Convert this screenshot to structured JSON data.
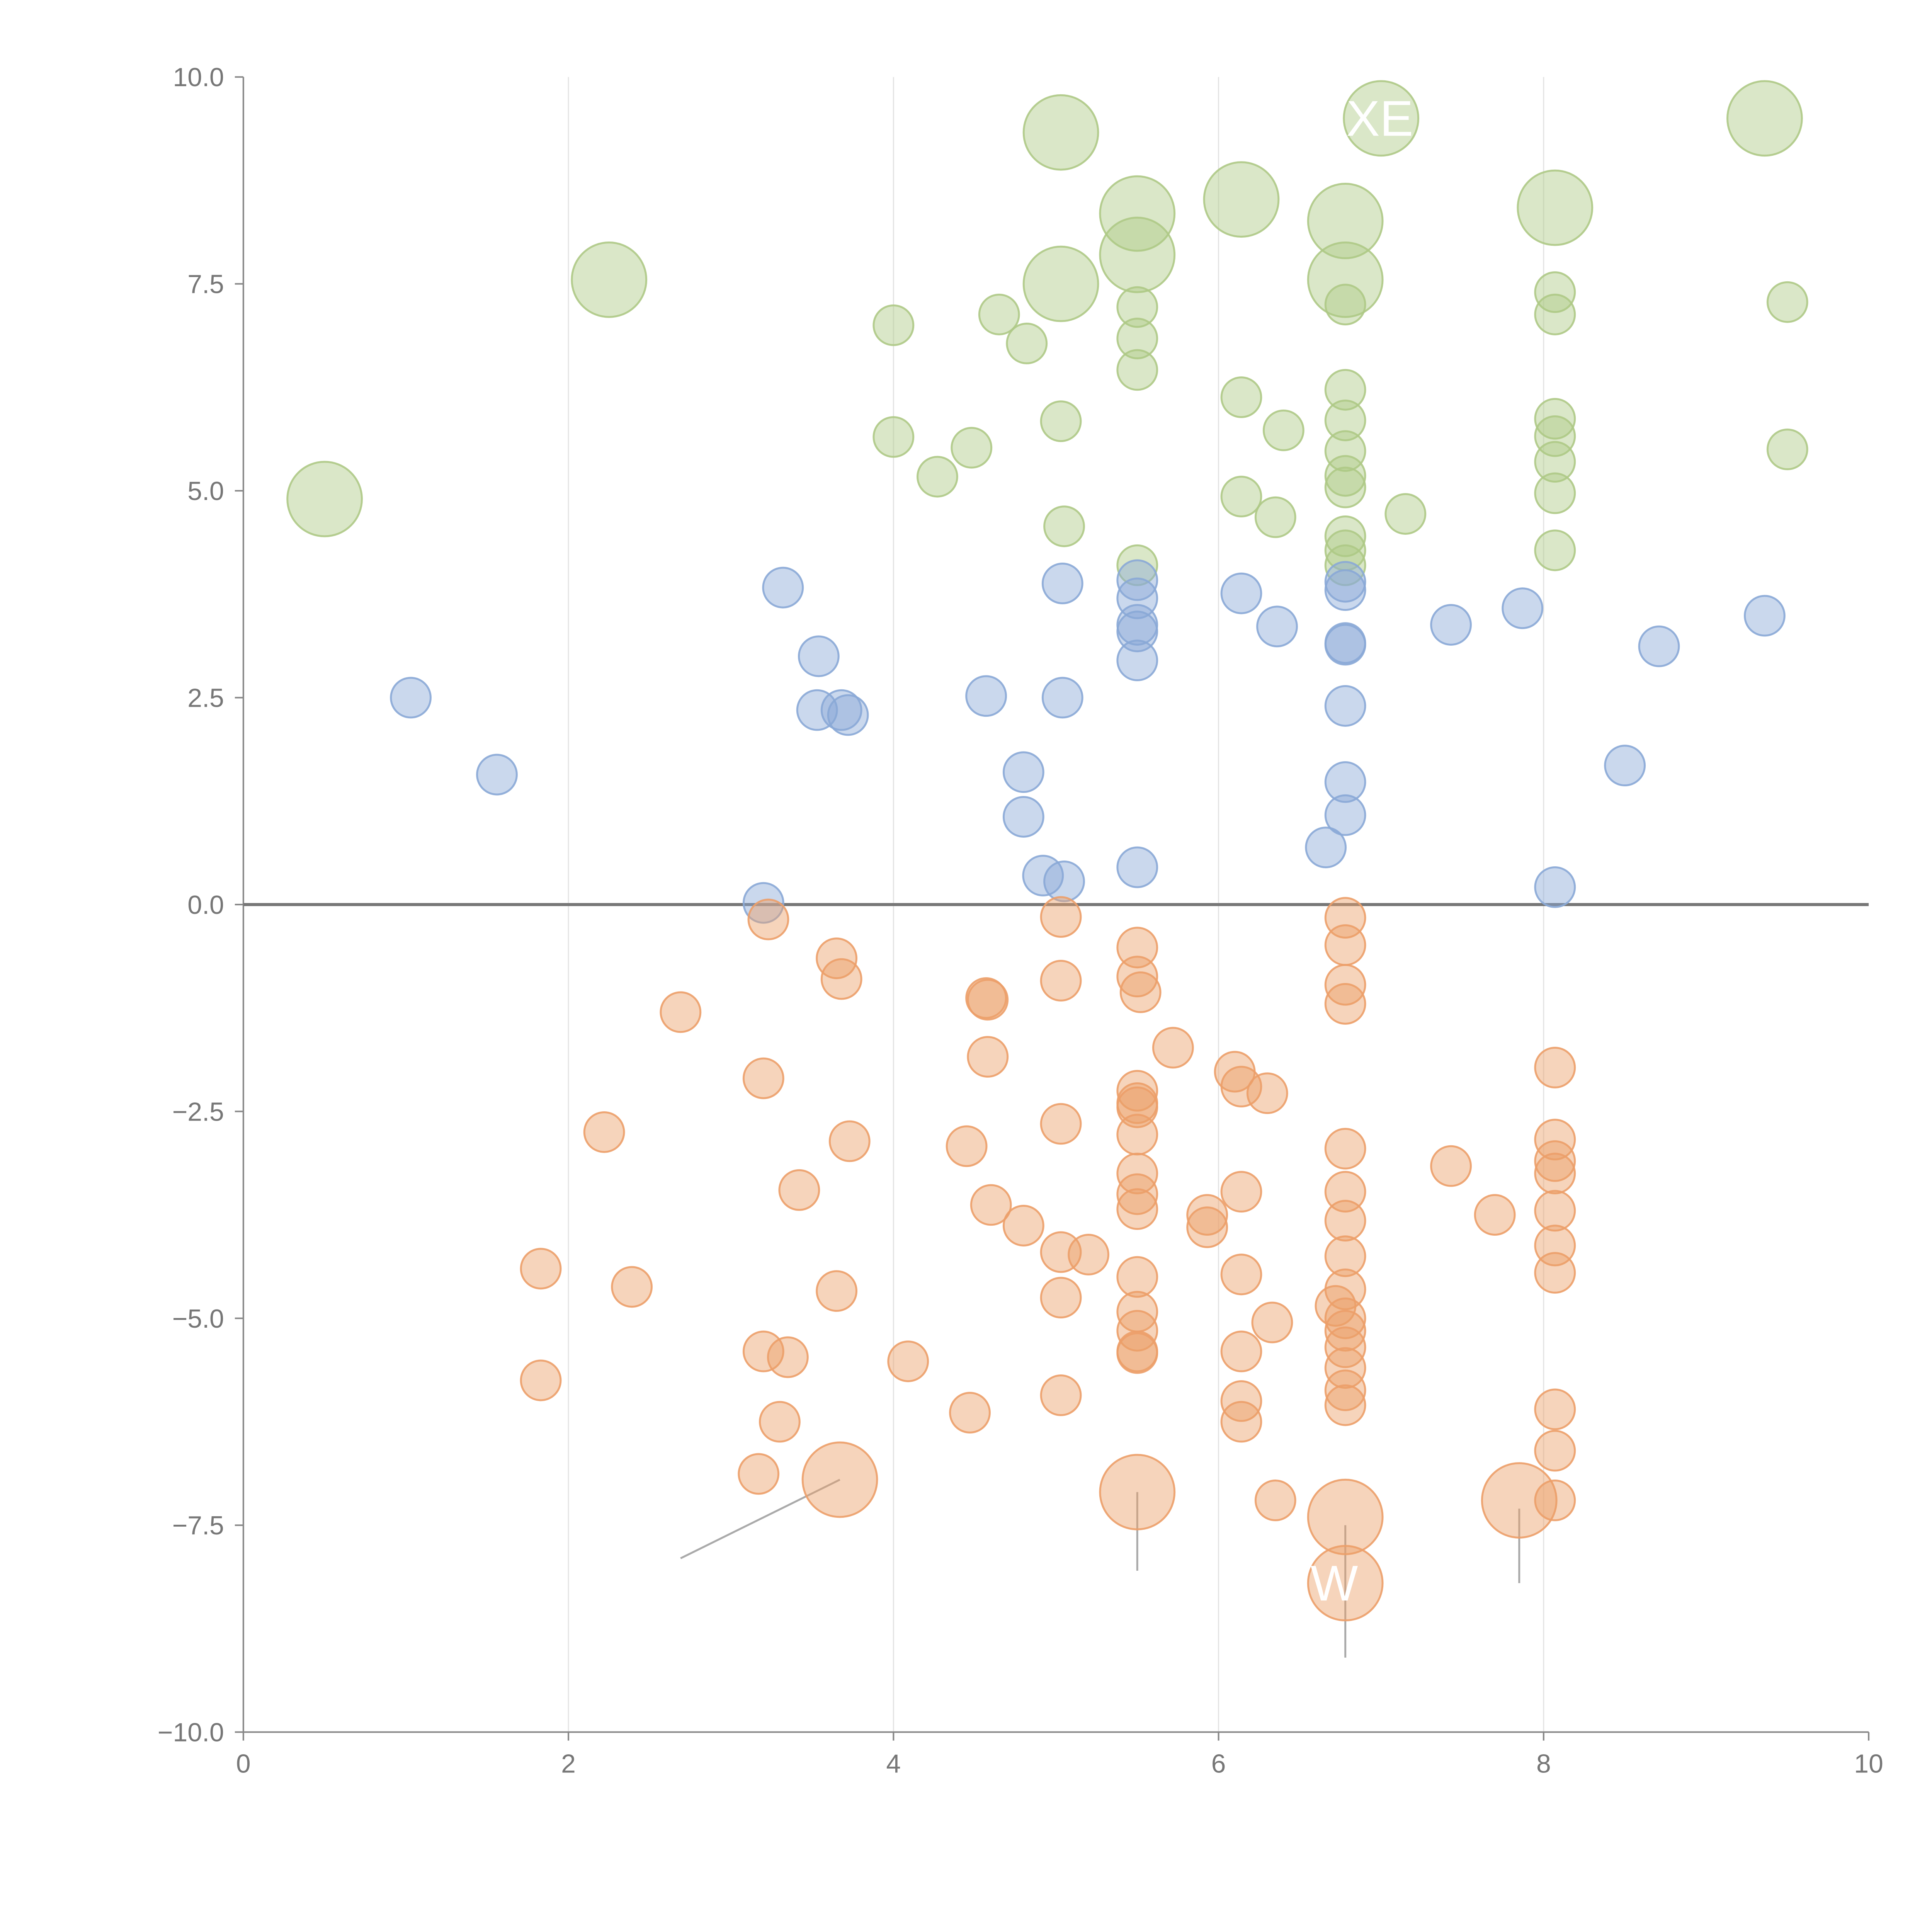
{
  "chart_data": {
    "type": "scatter",
    "title": "",
    "xlabel": "",
    "ylabel": "",
    "xlim": [
      0,
      10
    ],
    "ylim": [
      -10,
      10
    ],
    "x_ticks": [
      "0",
      "2",
      "4",
      "6",
      "8",
      "10"
    ],
    "y_ticks": [
      "−10.0",
      "−7.5",
      "−5.0",
      "−2.5",
      "0.0",
      "2.5",
      "5.0",
      "7.5",
      "10.0"
    ],
    "vertical_grid_at": [
      2,
      4,
      6,
      8
    ],
    "reference_line_y": 0,
    "legend": "none",
    "series": [
      {
        "color": "#aec986",
        "points": [
          [
            0.5,
            4.9,
            "large"
          ],
          [
            2.25,
            7.55,
            "large"
          ],
          [
            4.0,
            7.0,
            "small"
          ],
          [
            4.0,
            5.65,
            "small"
          ],
          [
            4.27,
            5.17,
            "small"
          ],
          [
            4.48,
            5.52,
            "small"
          ],
          [
            4.65,
            7.13,
            "small"
          ],
          [
            4.82,
            6.78,
            "small"
          ],
          [
            5.03,
            9.33,
            "large"
          ],
          [
            5.03,
            7.5,
            "large"
          ],
          [
            5.03,
            5.84,
            "small"
          ],
          [
            5.05,
            4.57,
            "small"
          ],
          [
            5.5,
            8.35,
            "large"
          ],
          [
            5.5,
            7.85,
            "large"
          ],
          [
            5.5,
            7.22,
            "small"
          ],
          [
            5.5,
            6.84,
            "small"
          ],
          [
            5.5,
            6.46,
            "small"
          ],
          [
            5.5,
            4.1,
            "small"
          ],
          [
            6.14,
            8.52,
            "large"
          ],
          [
            6.14,
            6.13,
            "small"
          ],
          [
            6.14,
            4.93,
            "small"
          ],
          [
            6.35,
            4.68,
            "small"
          ],
          [
            6.4,
            5.73,
            "small"
          ],
          [
            6.78,
            8.26,
            "large"
          ],
          [
            6.78,
            7.55,
            "large"
          ],
          [
            6.78,
            7.25,
            "small"
          ],
          [
            6.78,
            6.22,
            "small"
          ],
          [
            6.78,
            5.85,
            "small"
          ],
          [
            6.78,
            5.48,
            "small"
          ],
          [
            6.78,
            5.18,
            "small"
          ],
          [
            6.78,
            5.04,
            "small"
          ],
          [
            6.78,
            4.45,
            "small"
          ],
          [
            6.78,
            4.28,
            "small"
          ],
          [
            6.78,
            4.1,
            "small"
          ],
          [
            7.0,
            9.5,
            "large"
          ],
          [
            7.15,
            4.72,
            "small"
          ],
          [
            8.07,
            8.42,
            "large"
          ],
          [
            8.07,
            7.4,
            "small"
          ],
          [
            8.07,
            7.13,
            "small"
          ],
          [
            8.07,
            5.87,
            "small"
          ],
          [
            8.07,
            5.66,
            "small"
          ],
          [
            8.07,
            5.35,
            "small"
          ],
          [
            8.07,
            4.97,
            "small"
          ],
          [
            8.07,
            4.28,
            "small"
          ],
          [
            9.36,
            9.5,
            "large"
          ],
          [
            9.5,
            7.28,
            "small"
          ],
          [
            9.5,
            5.5,
            "small"
          ]
        ]
      },
      {
        "color": "#8aa9d6",
        "points": [
          [
            1.03,
            2.5,
            "small"
          ],
          [
            1.56,
            1.57,
            "small"
          ],
          [
            3.2,
            0.02,
            "small"
          ],
          [
            3.32,
            3.83,
            "small"
          ],
          [
            3.54,
            3.0,
            "small"
          ],
          [
            3.53,
            2.35,
            "small"
          ],
          [
            3.68,
            2.35,
            "small"
          ],
          [
            3.72,
            2.29,
            "small"
          ],
          [
            4.57,
            2.52,
            "small"
          ],
          [
            4.8,
            1.6,
            "small"
          ],
          [
            4.8,
            1.06,
            "small"
          ],
          [
            4.92,
            0.35,
            "small"
          ],
          [
            5.04,
            3.88,
            "small"
          ],
          [
            5.04,
            2.5,
            "small"
          ],
          [
            5.05,
            0.28,
            "small"
          ],
          [
            5.5,
            3.92,
            "small"
          ],
          [
            5.5,
            3.7,
            "small"
          ],
          [
            5.5,
            3.38,
            "small"
          ],
          [
            5.5,
            3.3,
            "small"
          ],
          [
            5.5,
            2.95,
            "small"
          ],
          [
            5.5,
            0.45,
            "small"
          ],
          [
            6.14,
            3.76,
            "small"
          ],
          [
            6.36,
            3.36,
            "small"
          ],
          [
            6.66,
            0.69,
            "small"
          ],
          [
            6.78,
            3.9,
            "small"
          ],
          [
            6.78,
            3.8,
            "small"
          ],
          [
            6.78,
            3.16,
            "small"
          ],
          [
            6.78,
            3.14,
            "small"
          ],
          [
            6.78,
            2.4,
            "small"
          ],
          [
            6.78,
            1.48,
            "small"
          ],
          [
            6.78,
            1.08,
            "small"
          ],
          [
            7.43,
            3.38,
            "small"
          ],
          [
            7.87,
            3.58,
            "small"
          ],
          [
            8.07,
            0.21,
            "small"
          ],
          [
            8.5,
            1.68,
            "small"
          ],
          [
            8.71,
            3.12,
            "small"
          ],
          [
            9.36,
            3.49,
            "small"
          ]
        ]
      },
      {
        "color": "#ec9f69",
        "points": [
          [
            1.83,
            -4.4,
            "small"
          ],
          [
            1.83,
            -5.75,
            "small"
          ],
          [
            2.22,
            -2.75,
            "small"
          ],
          [
            2.39,
            -4.62,
            "small"
          ],
          [
            2.69,
            -1.3,
            "small"
          ],
          [
            3.17,
            -6.88,
            "small"
          ],
          [
            3.2,
            -2.1,
            "small"
          ],
          [
            3.2,
            -5.4,
            "small"
          ],
          [
            3.23,
            -0.18,
            "small"
          ],
          [
            3.3,
            -6.25,
            "small"
          ],
          [
            3.35,
            -5.47,
            "small"
          ],
          [
            3.42,
            -3.45,
            "small"
          ],
          [
            3.65,
            -0.65,
            "small"
          ],
          [
            3.65,
            -4.67,
            "small"
          ],
          [
            3.67,
            -6.95,
            "large"
          ],
          [
            3.68,
            -0.9,
            "small"
          ],
          [
            3.73,
            -2.86,
            "small"
          ],
          [
            4.09,
            -5.52,
            "small"
          ],
          [
            4.45,
            -2.92,
            "small"
          ],
          [
            4.47,
            -6.14,
            "small"
          ],
          [
            4.57,
            -1.13,
            "small"
          ],
          [
            4.58,
            -1.15,
            "small"
          ],
          [
            4.58,
            -1.84,
            "small"
          ],
          [
            4.6,
            -3.63,
            "small"
          ],
          [
            4.8,
            -3.88,
            "small"
          ],
          [
            5.03,
            -0.15,
            "small"
          ],
          [
            5.03,
            -0.92,
            "small"
          ],
          [
            5.03,
            -2.65,
            "small"
          ],
          [
            5.03,
            -4.2,
            "small"
          ],
          [
            5.03,
            -4.75,
            "small"
          ],
          [
            5.03,
            -5.93,
            "small"
          ],
          [
            5.2,
            -4.23,
            "small"
          ],
          [
            5.5,
            -0.52,
            "small"
          ],
          [
            5.5,
            -0.87,
            "small"
          ],
          [
            5.52,
            -1.06,
            "small"
          ],
          [
            5.5,
            -2.25,
            "small"
          ],
          [
            5.5,
            -2.4,
            "small"
          ],
          [
            5.5,
            -2.45,
            "small"
          ],
          [
            5.5,
            -2.78,
            "small"
          ],
          [
            5.5,
            -3.25,
            "small"
          ],
          [
            5.5,
            -3.5,
            "small"
          ],
          [
            5.5,
            -3.68,
            "small"
          ],
          [
            5.5,
            -4.5,
            "small"
          ],
          [
            5.5,
            -4.92,
            "small"
          ],
          [
            5.5,
            -5.15,
            "small"
          ],
          [
            5.5,
            -5.4,
            "small"
          ],
          [
            5.5,
            -5.42,
            "small"
          ],
          [
            5.5,
            -7.1,
            "large"
          ],
          [
            5.72,
            -1.73,
            "small"
          ],
          [
            5.93,
            -3.75,
            "small"
          ],
          [
            5.93,
            -3.9,
            "small"
          ],
          [
            6.1,
            -2.02,
            "small"
          ],
          [
            6.14,
            -2.2,
            "small"
          ],
          [
            6.14,
            -3.47,
            "small"
          ],
          [
            6.14,
            -4.47,
            "small"
          ],
          [
            6.14,
            -5.4,
            "small"
          ],
          [
            6.14,
            -6.0,
            "small"
          ],
          [
            6.14,
            -6.25,
            "small"
          ],
          [
            6.3,
            -2.28,
            "small"
          ],
          [
            6.33,
            -5.05,
            "small"
          ],
          [
            6.35,
            -7.2,
            "small"
          ],
          [
            6.72,
            -4.85,
            "small"
          ],
          [
            6.78,
            -0.16,
            "small"
          ],
          [
            6.78,
            -0.49,
            "small"
          ],
          [
            6.78,
            -0.97,
            "small"
          ],
          [
            6.78,
            -1.2,
            "small"
          ],
          [
            6.78,
            -2.95,
            "small"
          ],
          [
            6.78,
            -3.47,
            "small"
          ],
          [
            6.78,
            -3.82,
            "small"
          ],
          [
            6.78,
            -4.25,
            "small"
          ],
          [
            6.78,
            -4.65,
            "small"
          ],
          [
            6.78,
            -5.0,
            "small"
          ],
          [
            6.78,
            -5.15,
            "small"
          ],
          [
            6.78,
            -5.35,
            "small"
          ],
          [
            6.78,
            -5.6,
            "small"
          ],
          [
            6.78,
            -5.87,
            "small"
          ],
          [
            6.78,
            -6.05,
            "small"
          ],
          [
            6.78,
            -7.4,
            "large"
          ],
          [
            6.78,
            -8.2,
            "large"
          ],
          [
            7.43,
            -3.16,
            "small"
          ],
          [
            7.7,
            -3.75,
            "small"
          ],
          [
            7.85,
            -7.2,
            "large"
          ],
          [
            8.07,
            -1.97,
            "small"
          ],
          [
            8.07,
            -2.84,
            "small"
          ],
          [
            8.07,
            -3.1,
            "small"
          ],
          [
            8.07,
            -3.25,
            "small"
          ],
          [
            8.07,
            -3.7,
            "small"
          ],
          [
            8.07,
            -4.12,
            "small"
          ],
          [
            8.07,
            -4.45,
            "small"
          ],
          [
            8.07,
            -6.1,
            "small"
          ],
          [
            8.07,
            -6.6,
            "small"
          ],
          [
            8.07,
            -7.2,
            "small"
          ]
        ]
      }
    ],
    "annotations": [
      {
        "text": "XE",
        "x": 7.0,
        "y": 9.5
      },
      {
        "text": "W",
        "x": 6.78,
        "y": -8.2
      }
    ]
  }
}
